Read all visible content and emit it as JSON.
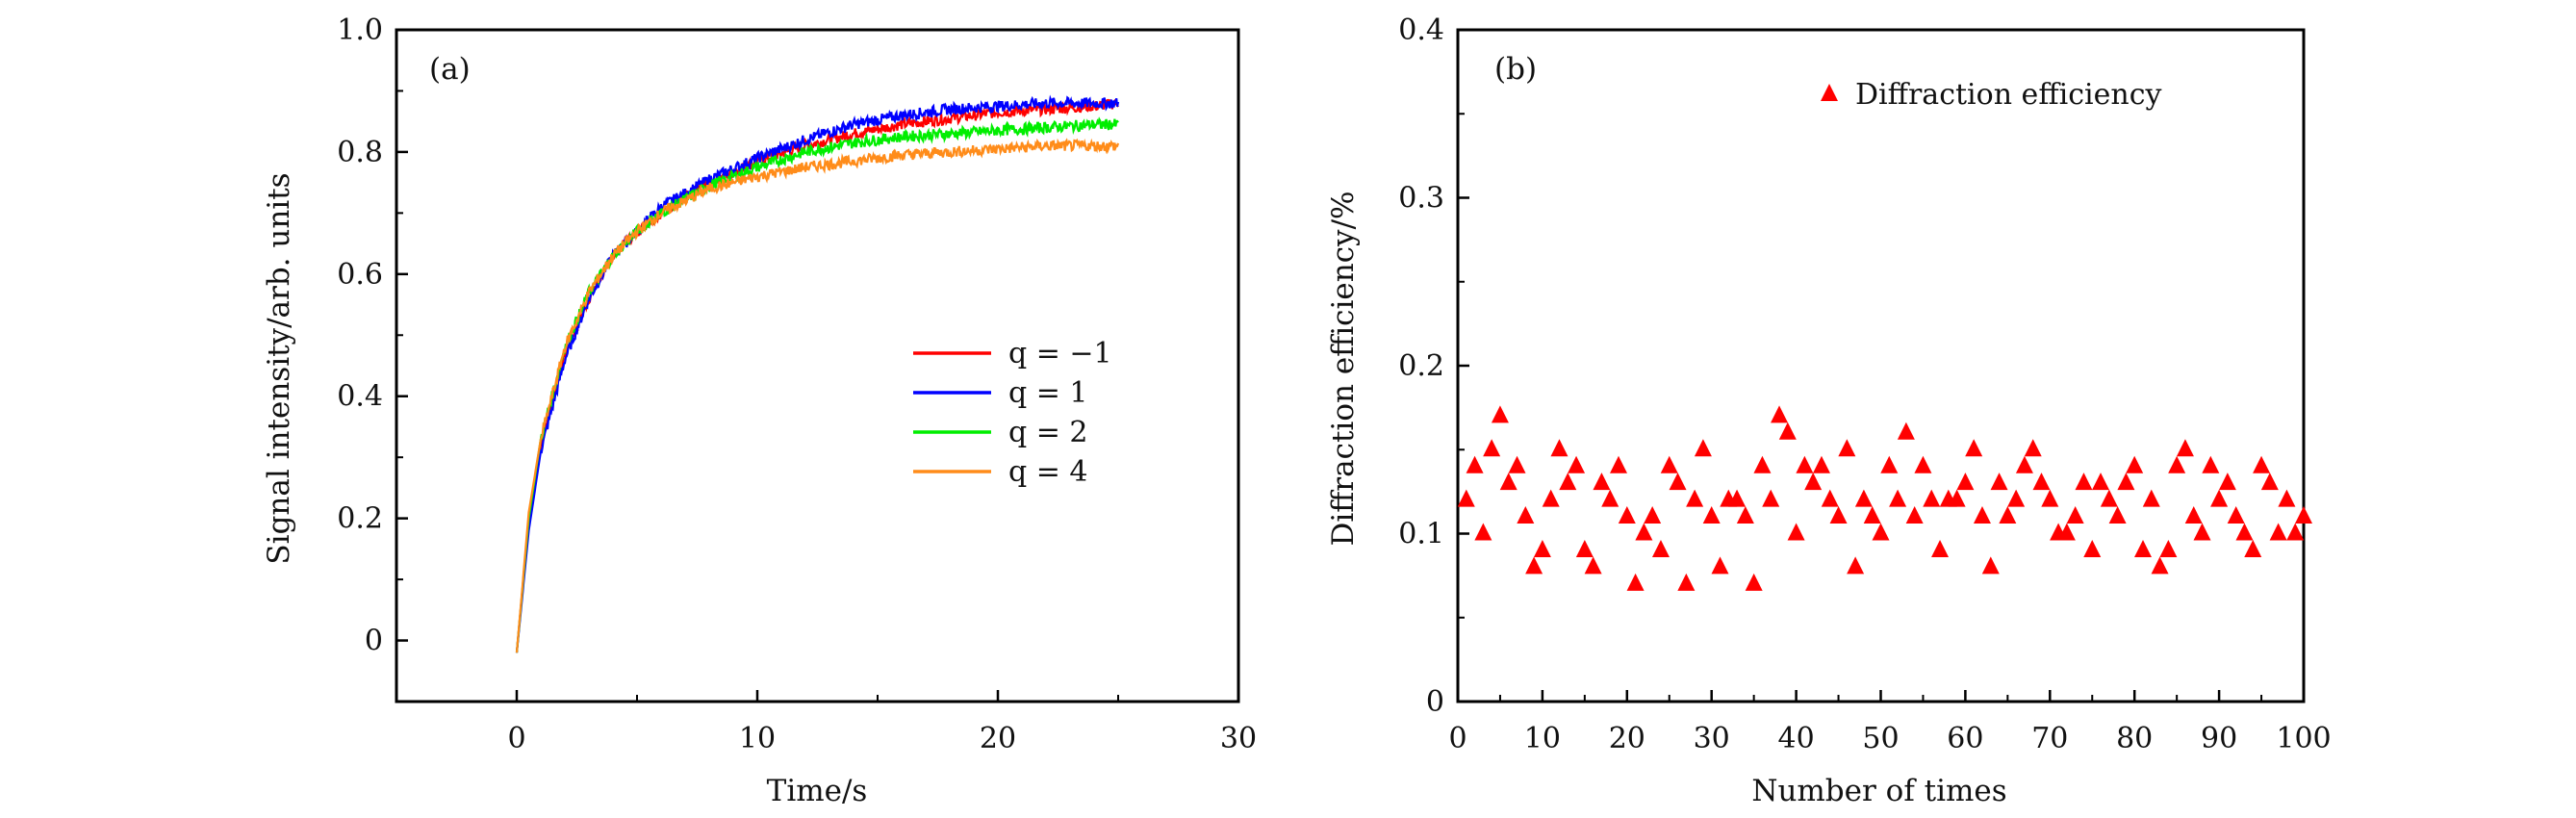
{
  "chart_data": [
    {
      "type": "line",
      "panel_label": "(a)",
      "xlabel": "Time/s",
      "ylabel": "Signal intensity/arb. units",
      "xlim": [
        -5,
        30
      ],
      "ylim": [
        -0.1,
        1.0
      ],
      "xticks": [
        "0",
        "10",
        "20",
        "30"
      ],
      "yticks": [
        "0",
        "0.2",
        "0.4",
        "0.6",
        "0.8",
        "1.0"
      ],
      "grid": false,
      "legend_placement": "center-right",
      "x": [
        0,
        0.5,
        1,
        2,
        3,
        4,
        5,
        6,
        8,
        10,
        12,
        14,
        16,
        18,
        20,
        22,
        24,
        25
      ],
      "series": [
        {
          "name": "q = −1",
          "color": "#ff0000",
          "values": [
            -0.02,
            0.2,
            0.32,
            0.47,
            0.56,
            0.63,
            0.67,
            0.7,
            0.75,
            0.785,
            0.81,
            0.83,
            0.845,
            0.855,
            0.865,
            0.87,
            0.875,
            0.88
          ]
        },
        {
          "name": "q = 1",
          "color": "#0000ff",
          "values": [
            -0.02,
            0.18,
            0.31,
            0.46,
            0.56,
            0.63,
            0.67,
            0.71,
            0.755,
            0.79,
            0.82,
            0.845,
            0.86,
            0.87,
            0.875,
            0.88,
            0.88,
            0.88
          ]
        },
        {
          "name": "q = 2",
          "color": "#00ee00",
          "values": [
            -0.02,
            0.2,
            0.33,
            0.48,
            0.57,
            0.63,
            0.67,
            0.7,
            0.745,
            0.775,
            0.8,
            0.815,
            0.825,
            0.83,
            0.835,
            0.84,
            0.845,
            0.845
          ]
        },
        {
          "name": "q = 4",
          "color": "#ff8c1a",
          "values": [
            -0.02,
            0.21,
            0.33,
            0.48,
            0.57,
            0.63,
            0.67,
            0.7,
            0.74,
            0.76,
            0.775,
            0.785,
            0.795,
            0.8,
            0.805,
            0.81,
            0.81,
            0.81
          ]
        }
      ]
    },
    {
      "type": "scatter",
      "panel_label": "(b)",
      "xlabel": "Number of times",
      "ylabel": "Diffraction efficiency/%",
      "xlim": [
        0,
        100
      ],
      "ylim": [
        0,
        0.4
      ],
      "xticks": [
        "0",
        "10",
        "20",
        "30",
        "40",
        "50",
        "60",
        "70",
        "80",
        "90",
        "100"
      ],
      "yticks": [
        "0",
        "0.1",
        "0.2",
        "0.3",
        "0.4"
      ],
      "grid": false,
      "legend_placement": "top-right",
      "series": [
        {
          "name": "Diffraction efficiency",
          "color": "#ff0000",
          "marker": "triangle",
          "x": [
            1,
            2,
            3,
            4,
            5,
            6,
            7,
            8,
            9,
            10,
            11,
            12,
            13,
            14,
            15,
            16,
            17,
            18,
            19,
            20,
            21,
            22,
            23,
            24,
            25,
            26,
            27,
            28,
            29,
            30,
            31,
            32,
            33,
            34,
            35,
            36,
            37,
            38,
            39,
            40,
            41,
            42,
            43,
            44,
            45,
            46,
            47,
            48,
            49,
            50,
            51,
            52,
            53,
            54,
            55,
            56,
            57,
            58,
            59,
            60,
            61,
            62,
            63,
            64,
            65,
            66,
            67,
            68,
            69,
            70,
            71,
            72,
            73,
            74,
            75,
            76,
            77,
            78,
            79,
            80,
            81,
            82,
            83,
            84,
            85,
            86,
            87,
            88,
            89,
            90,
            91,
            92,
            93,
            94,
            95,
            96,
            97,
            98,
            99,
            100
          ],
          "values": [
            0.12,
            0.14,
            0.1,
            0.15,
            0.17,
            0.13,
            0.14,
            0.11,
            0.08,
            0.09,
            0.12,
            0.15,
            0.13,
            0.14,
            0.09,
            0.08,
            0.13,
            0.12,
            0.14,
            0.11,
            0.07,
            0.1,
            0.11,
            0.09,
            0.14,
            0.13,
            0.07,
            0.12,
            0.15,
            0.11,
            0.08,
            0.12,
            0.12,
            0.11,
            0.07,
            0.14,
            0.12,
            0.17,
            0.16,
            0.1,
            0.14,
            0.13,
            0.14,
            0.12,
            0.11,
            0.15,
            0.08,
            0.12,
            0.11,
            0.1,
            0.14,
            0.12,
            0.16,
            0.11,
            0.14,
            0.12,
            0.09,
            0.12,
            0.12,
            0.13,
            0.15,
            0.11,
            0.08,
            0.13,
            0.11,
            0.12,
            0.14,
            0.15,
            0.13,
            0.12,
            0.1,
            0.1,
            0.11,
            0.13,
            0.09,
            0.13,
            0.12,
            0.11,
            0.13,
            0.14,
            0.09,
            0.12,
            0.08,
            0.09,
            0.14,
            0.15,
            0.11,
            0.1,
            0.14,
            0.12,
            0.13,
            0.11,
            0.1,
            0.09,
            0.14,
            0.13,
            0.1,
            0.12,
            0.1,
            0.11
          ]
        }
      ]
    }
  ]
}
